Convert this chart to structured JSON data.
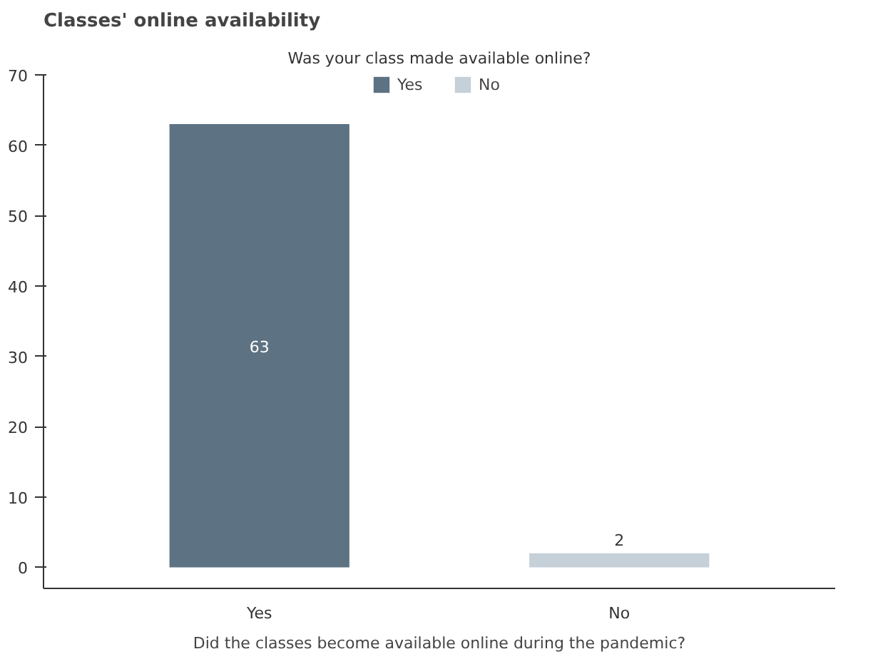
{
  "chart_data": {
    "type": "bar",
    "title": "Classes' online availability",
    "legend_title": "Was your class made available online?",
    "xlabel": "Did the classes become available online during the pandemic?",
    "categories": [
      "Yes",
      "No"
    ],
    "series": [
      {
        "name": "Yes",
        "color": "#5d7282",
        "values": [
          63,
          null
        ]
      },
      {
        "name": "No",
        "color": "#c5d0d8",
        "values": [
          null,
          2
        ]
      }
    ],
    "ylim": [
      -3,
      70
    ],
    "yticks": [
      0,
      10,
      20,
      30,
      40,
      50,
      60,
      70
    ],
    "data_labels": true,
    "legend": "top"
  }
}
